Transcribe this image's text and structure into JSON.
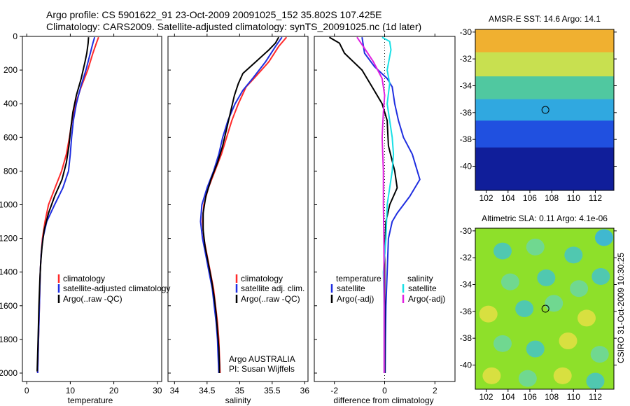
{
  "header": {
    "line1": "Argo profile: CS 5901622_91 23-Oct-2009 20091025_152 35.802S 107.425E",
    "line2": "Climatology: CARS2009. Satellite-adjusted climatology: synTS_20091025.nc (1d later)"
  },
  "colors": {
    "climatology": "#ff2a2a",
    "satellite": "#1f2ee0",
    "argo": "#000000",
    "sal_satellite": "#19e0e6",
    "sal_argo": "#e020e0"
  },
  "depth_axis": {
    "ylim": [
      0,
      2050
    ],
    "ticks": [
      "0",
      "200",
      "400",
      "600",
      "800",
      "1000",
      "1200",
      "1400",
      "1600",
      "1800",
      "2000"
    ]
  },
  "temperature_panel": {
    "xlabel": "temperature",
    "xticks": [
      "0",
      "10",
      "20",
      "30"
    ],
    "legend": [
      "climatology",
      "satellite-adjusted climatology",
      "Argo(..raw -QC)"
    ]
  },
  "salinity_panel": {
    "xlabel": "salinity",
    "xticks": [
      "34",
      "34.5",
      "35",
      "35.5",
      "36"
    ],
    "legend": [
      "climatology",
      "satellite adj. clim.",
      "Argo(..raw -QC)"
    ],
    "credit1": "Argo AUSTRALIA",
    "credit2": "PI: Susan Wijffels"
  },
  "difference_panel": {
    "xlabel": "difference from climatology",
    "xticks": [
      "-2",
      "0",
      "2"
    ],
    "temp_legend_title": "temperature",
    "temp_legend": [
      "satellite",
      "Argo(-adj)"
    ],
    "sal_legend_title": "salinity",
    "sal_legend": [
      "satellite",
      "Argo(-adj)"
    ]
  },
  "sst_map": {
    "title": "AMSR-E SST: 14.6 Argo: 14.1",
    "yticks": [
      "-30",
      "-32",
      "-34",
      "-36",
      "-38",
      "-40"
    ],
    "xticks": [
      "102",
      "104",
      "106",
      "108",
      "110",
      "112"
    ]
  },
  "sla_map": {
    "title": "Altimetric SLA: 0.11 Argo: 4.1e-06",
    "yticks": [
      "-30",
      "-32",
      "-34",
      "-36",
      "-38",
      "-40"
    ],
    "xticks": [
      "102",
      "104",
      "106",
      "108",
      "110",
      "112"
    ]
  },
  "footer_stamp": "CSIRO 31-Oct-2009 10:30:25",
  "chart_data": [
    {
      "type": "line",
      "title": "",
      "xlabel": "temperature",
      "ylabel": "",
      "xlim": [
        -1,
        31
      ],
      "ylim": [
        0,
        2050
      ],
      "y_inverted": true,
      "series": [
        {
          "name": "climatology",
          "points": [
            [
              16.5,
              5
            ],
            [
              16,
              40
            ],
            [
              15.2,
              100
            ],
            [
              14,
              200
            ],
            [
              12.5,
              300
            ],
            [
              11.2,
              400
            ],
            [
              10.4,
              500
            ],
            [
              9.8,
              600
            ],
            [
              9.1,
              700
            ],
            [
              8.0,
              800
            ],
            [
              6.5,
              900
            ],
            [
              5.0,
              1000
            ],
            [
              4.2,
              1100
            ],
            [
              3.6,
              1200
            ],
            [
              3.3,
              1300
            ],
            [
              3.1,
              1400
            ],
            [
              2.9,
              1600
            ],
            [
              2.7,
              1800
            ],
            [
              2.5,
              2000
            ]
          ]
        },
        {
          "name": "satellite-adjusted climatology",
          "points": [
            [
              15.6,
              5
            ],
            [
              15.2,
              40
            ],
            [
              14.6,
              100
            ],
            [
              13.6,
              200
            ],
            [
              12.4,
              300
            ],
            [
              11.4,
              400
            ],
            [
              10.7,
              500
            ],
            [
              10.3,
              600
            ],
            [
              10,
              700
            ],
            [
              9.6,
              800
            ],
            [
              8.3,
              900
            ],
            [
              6.4,
              1000
            ],
            [
              4.6,
              1100
            ],
            [
              3.7,
              1200
            ],
            [
              3.3,
              1300
            ],
            [
              3.1,
              1400
            ],
            [
              2.9,
              1600
            ],
            [
              2.7,
              1800
            ],
            [
              2.5,
              2000
            ]
          ]
        },
        {
          "name": "Argo(..raw -QC)",
          "points": [
            [
              14.2,
              5
            ],
            [
              14.1,
              40
            ],
            [
              13.8,
              100
            ],
            [
              13.4,
              150
            ],
            [
              12.5,
              250
            ],
            [
              11.4,
              350
            ],
            [
              10.6,
              450
            ],
            [
              10.1,
              550
            ],
            [
              9.7,
              650
            ],
            [
              9.1,
              750
            ],
            [
              8.1,
              850
            ],
            [
              6.4,
              950
            ],
            [
              5.0,
              1050
            ],
            [
              4.0,
              1150
            ],
            [
              3.5,
              1250
            ],
            [
              3.2,
              1350
            ],
            [
              3.0,
              1450
            ],
            [
              2.8,
              1600
            ],
            [
              2.6,
              1800
            ],
            [
              2.4,
              1990
            ]
          ]
        }
      ]
    },
    {
      "type": "line",
      "title": "",
      "xlabel": "salinity",
      "ylabel": "",
      "xlim": [
        33.9,
        36.05
      ],
      "ylim": [
        0,
        2050
      ],
      "y_inverted": true,
      "series": [
        {
          "name": "climatology",
          "points": [
            [
              35.72,
              5
            ],
            [
              35.6,
              60
            ],
            [
              35.45,
              150
            ],
            [
              35.22,
              250
            ],
            [
              35.1,
              300
            ],
            [
              34.98,
              400
            ],
            [
              34.88,
              500
            ],
            [
              34.8,
              600
            ],
            [
              34.72,
              700
            ],
            [
              34.62,
              800
            ],
            [
              34.52,
              900
            ],
            [
              34.45,
              1000
            ],
            [
              34.43,
              1100
            ],
            [
              34.45,
              1200
            ],
            [
              34.5,
              1300
            ],
            [
              34.55,
              1400
            ],
            [
              34.6,
              1500
            ],
            [
              34.63,
              1600
            ],
            [
              34.66,
              1700
            ],
            [
              34.68,
              1800
            ],
            [
              34.69,
              1900
            ],
            [
              34.7,
              2000
            ]
          ]
        },
        {
          "name": "satellite adj. clim.",
          "points": [
            [
              35.65,
              5
            ],
            [
              35.55,
              60
            ],
            [
              35.4,
              150
            ],
            [
              35.2,
              250
            ],
            [
              35.05,
              320
            ],
            [
              34.93,
              400
            ],
            [
              34.82,
              500
            ],
            [
              34.74,
              600
            ],
            [
              34.68,
              700
            ],
            [
              34.6,
              800
            ],
            [
              34.5,
              900
            ],
            [
              34.42,
              1000
            ],
            [
              34.4,
              1100
            ],
            [
              34.43,
              1200
            ],
            [
              34.48,
              1300
            ],
            [
              34.53,
              1400
            ],
            [
              34.58,
              1500
            ],
            [
              34.61,
              1600
            ],
            [
              34.64,
              1700
            ],
            [
              34.66,
              1800
            ],
            [
              34.67,
              1900
            ],
            [
              34.68,
              2000
            ]
          ]
        },
        {
          "name": "Argo(..raw -QC)",
          "points": [
            [
              35.6,
              5
            ],
            [
              35.55,
              40
            ],
            [
              35.45,
              80
            ],
            [
              35.25,
              150
            ],
            [
              35.05,
              220
            ],
            [
              34.98,
              280
            ],
            [
              34.92,
              350
            ],
            [
              34.86,
              450
            ],
            [
              34.8,
              550
            ],
            [
              34.74,
              650
            ],
            [
              34.66,
              750
            ],
            [
              34.56,
              850
            ],
            [
              34.48,
              950
            ],
            [
              34.44,
              1050
            ],
            [
              34.44,
              1150
            ],
            [
              34.47,
              1250
            ],
            [
              34.52,
              1350
            ],
            [
              34.57,
              1450
            ],
            [
              34.61,
              1550
            ],
            [
              34.64,
              1650
            ],
            [
              34.66,
              1750
            ],
            [
              34.68,
              1850
            ],
            [
              34.69,
              1950
            ],
            [
              34.69,
              2000
            ]
          ]
        }
      ]
    },
    {
      "type": "line",
      "title": "",
      "xlabel": "difference from climatology",
      "ylabel": "",
      "xlim": [
        -2.8,
        2.8
      ],
      "ylim": [
        0,
        2050
      ],
      "y_inverted": true,
      "series": [
        {
          "name": "temperature satellite",
          "points": [
            [
              -0.9,
              5
            ],
            [
              -0.8,
              100
            ],
            [
              -0.4,
              180
            ],
            [
              0.1,
              250
            ],
            [
              0.3,
              300
            ],
            [
              0.4,
              400
            ],
            [
              0.55,
              500
            ],
            [
              0.75,
              600
            ],
            [
              1.1,
              700
            ],
            [
              1.4,
              850
            ],
            [
              1.0,
              950
            ],
            [
              0.5,
              1050
            ],
            [
              0.3,
              1100
            ],
            [
              0.15,
              1200
            ],
            [
              0.1,
              1400
            ],
            [
              0.05,
              1600
            ],
            [
              0.03,
              1800
            ],
            [
              0.02,
              2000
            ]
          ]
        },
        {
          "name": "temperature Argo(-adj)",
          "points": [
            [
              -2.2,
              5
            ],
            [
              -1.8,
              40
            ],
            [
              -1.6,
              100
            ],
            [
              -0.9,
              200
            ],
            [
              -0.5,
              300
            ],
            [
              -0.1,
              400
            ],
            [
              0.1,
              500
            ],
            [
              0.15,
              650
            ],
            [
              0.4,
              800
            ],
            [
              0.5,
              900
            ],
            [
              0.2,
              1000
            ],
            [
              0.05,
              1100
            ],
            [
              0,
              1300
            ],
            [
              0,
              1600
            ],
            [
              0,
              2000
            ]
          ]
        },
        {
          "name": "salinity satellite",
          "points": [
            [
              -0.1,
              5
            ],
            [
              0.2,
              30
            ],
            [
              0.25,
              80
            ],
            [
              0.1,
              200
            ],
            [
              0.2,
              280
            ],
            [
              0.1,
              400
            ],
            [
              0.3,
              600
            ],
            [
              0.35,
              700
            ],
            [
              0.3,
              800
            ],
            [
              0.2,
              900
            ],
            [
              0.1,
              1000
            ],
            [
              0.05,
              1200
            ],
            [
              -0.05,
              1400
            ],
            [
              -0.02,
              1600
            ],
            [
              -0.02,
              2000
            ]
          ]
        },
        {
          "name": "salinity Argo(-adj)",
          "points": [
            [
              -1.1,
              5
            ],
            [
              -0.85,
              60
            ],
            [
              -0.45,
              150
            ],
            [
              -0.1,
              250
            ],
            [
              0,
              350
            ],
            [
              -0.05,
              450
            ],
            [
              -0.1,
              600
            ],
            [
              -0.05,
              800
            ],
            [
              -0.05,
              1000
            ],
            [
              -0.03,
              1200
            ],
            [
              -0.02,
              1600
            ],
            [
              -0.02,
              2000
            ]
          ]
        }
      ]
    },
    {
      "type": "heatmap",
      "title": "AMSR-E SST: 14.6 Argo: 14.1",
      "xlim": [
        101,
        113.7
      ],
      "ylim": [
        -41.8,
        -29.8
      ],
      "marker": [
        107.425,
        -35.802
      ],
      "bands": [
        {
          "lat_from": -29.8,
          "lat_to": -31.5,
          "color": "#f0b030"
        },
        {
          "lat_from": -31.5,
          "lat_to": -33.3,
          "color": "#c8e050"
        },
        {
          "lat_from": -33.3,
          "lat_to": -35.0,
          "color": "#50c8a0"
        },
        {
          "lat_from": -35.0,
          "lat_to": -36.6,
          "color": "#30a8e0"
        },
        {
          "lat_from": -36.6,
          "lat_to": -38.6,
          "color": "#2050e0"
        },
        {
          "lat_from": -38.6,
          "lat_to": -41.8,
          "color": "#101e9a"
        }
      ]
    },
    {
      "type": "heatmap",
      "title": "Altimetric SLA: 0.11 Argo: 4.1e-06",
      "xlim": [
        101,
        113.7
      ],
      "ylim": [
        -41.8,
        -29.8
      ],
      "marker": [
        107.425,
        -35.802
      ],
      "background": "#8ee02a",
      "blobs": [
        [
          103.5,
          -31.5,
          "#50c8b0"
        ],
        [
          106.5,
          -31.2,
          "#70d890"
        ],
        [
          110,
          -31.8,
          "#50c8b0"
        ],
        [
          112.8,
          -30.5,
          "#40b8d0"
        ],
        [
          104.2,
          -33.8,
          "#70d890"
        ],
        [
          107.5,
          -33.5,
          "#50c8b0"
        ],
        [
          110.5,
          -34.3,
          "#70d890"
        ],
        [
          112.5,
          -33.4,
          "#50c8b0"
        ],
        [
          102.2,
          -36.2,
          "#d8e040"
        ],
        [
          105.5,
          -35.8,
          "#50c8b0"
        ],
        [
          108.2,
          -35.4,
          "#70d890"
        ],
        [
          111.2,
          -36.5,
          "#d8e040"
        ],
        [
          103.5,
          -38.4,
          "#70d890"
        ],
        [
          106.5,
          -38.8,
          "#50c8b0"
        ],
        [
          109.5,
          -38.2,
          "#d8e040"
        ],
        [
          112.4,
          -39.2,
          "#70d890"
        ],
        [
          102.5,
          -40.8,
          "#d8e040"
        ],
        [
          105.8,
          -41,
          "#70d890"
        ],
        [
          109,
          -40.8,
          "#d8e040"
        ],
        [
          112,
          -41.2,
          "#50c8b0"
        ]
      ]
    }
  ]
}
